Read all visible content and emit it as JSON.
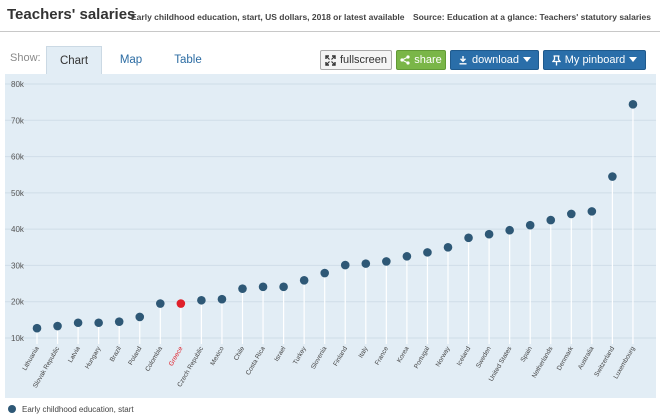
{
  "header": {
    "title": "Teachers' salaries",
    "subtitle": "Early childhood education, start, US dollars, 2018 or latest available",
    "source": "Source: Education at a glance: Teachers' statutory salaries"
  },
  "toolbar": {
    "show_label": "Show:",
    "tabs": [
      {
        "label": "Chart",
        "active": true
      },
      {
        "label": "Map",
        "active": false
      },
      {
        "label": "Table",
        "active": false
      }
    ],
    "fullscreen_label": "fullscreen",
    "share_label": "share",
    "download_label": "download",
    "pinboard_label": "My pinboard"
  },
  "colors": {
    "point": "#2e5876",
    "highlight": "#e0202a",
    "highlight_label": "#e0202a",
    "background": "#e2edf5",
    "stem": "#ffffff"
  },
  "chart_data": {
    "type": "scatter",
    "title": "",
    "xlabel": "",
    "ylabel": "",
    "ylim": [
      7000,
      82000
    ],
    "y_ticks": [
      10000,
      20000,
      30000,
      40000,
      50000,
      60000,
      70000,
      80000
    ],
    "y_tick_labels": [
      "10k",
      "20k",
      "30k",
      "40k",
      "50k",
      "60k",
      "70k",
      "80k"
    ],
    "grid": "horizontal",
    "legend_position": "bottom-left",
    "highlight": "Greece",
    "categories": [
      "Lithuania",
      "Slovak Republic",
      "Latvia",
      "Hungary",
      "Brazil",
      "Poland",
      "Colombia",
      "Greece",
      "Czech Republic",
      "Mexico",
      "Chile",
      "Costa Rica",
      "Israel",
      "Turkey",
      "Slovenia",
      "Finland",
      "Italy",
      "France",
      "Korea",
      "Portugal",
      "Norway",
      "Iceland",
      "Sweden",
      "United States",
      "Spain",
      "Netherlands",
      "Denmark",
      "Australia",
      "Switzerland",
      "Luxembourg"
    ],
    "series": [
      {
        "name": "Early childhood education, start",
        "values": [
          12700,
          13300,
          14200,
          14200,
          14500,
          15800,
          19500,
          19500,
          20400,
          20700,
          23600,
          24100,
          24100,
          25900,
          27900,
          30100,
          30500,
          31100,
          32500,
          33600,
          35000,
          37600,
          38600,
          39700,
          41100,
          42500,
          44200,
          44900,
          54500,
          74400
        ]
      }
    ]
  }
}
